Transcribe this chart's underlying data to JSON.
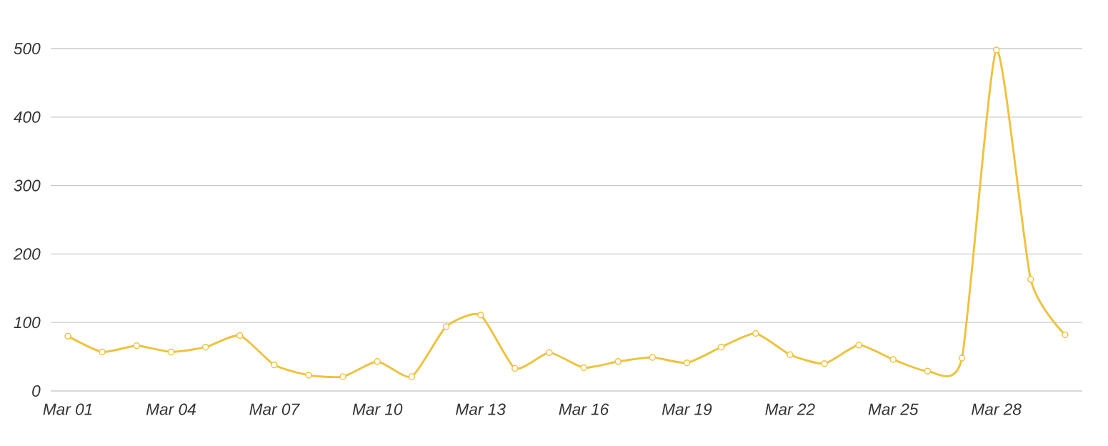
{
  "chart_data": {
    "type": "line",
    "categories": [
      "Mar 01",
      null,
      null,
      "Mar 04",
      null,
      null,
      "Mar 07",
      null,
      null,
      "Mar 10",
      null,
      null,
      "Mar 13",
      null,
      null,
      "Mar 16",
      null,
      null,
      "Mar 19",
      null,
      null,
      "Mar 22",
      null,
      null,
      "Mar 25",
      null,
      null,
      "Mar 28",
      null,
      null
    ],
    "series": [
      {
        "color": "#efc23d",
        "values": [
          80,
          57,
          66,
          57,
          64,
          81,
          38,
          23,
          21,
          43,
          21,
          94,
          111,
          33,
          56,
          34,
          43,
          49,
          41,
          64,
          84,
          53,
          40,
          67,
          46,
          29,
          48,
          498,
          163,
          82
        ]
      }
    ],
    "ylim": [
      0,
      500
    ],
    "yticks": [
      0,
      100,
      200,
      300,
      400,
      500
    ],
    "grid": "y",
    "marker": "circle",
    "line_style": "solid"
  }
}
